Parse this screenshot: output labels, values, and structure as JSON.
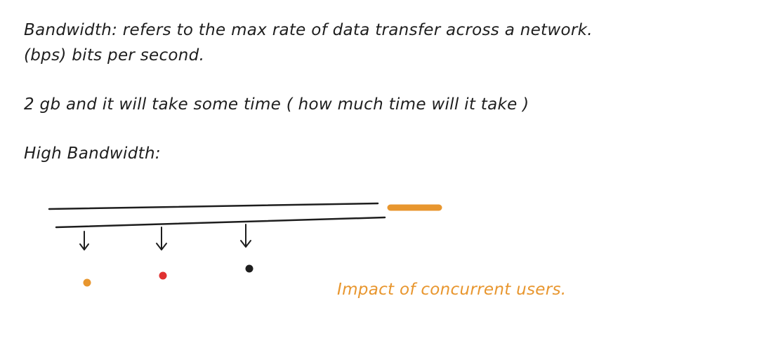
{
  "text": {
    "bandwidth_definition": "Bandwidth: refers to the max rate of data transfer across a network.",
    "bps_note": "(bps) bits per second.",
    "example_2gb": "2 gb and it will take some time ( how much time will it take )",
    "high_bandwidth_heading": "High Bandwidth:",
    "impact_note": "Impact of concurrent users."
  },
  "colors": {
    "ink": "#1e1e1e",
    "orange": "#e8962e",
    "red": "#e03131",
    "black": "#1e1e1e"
  },
  "diagram": {
    "pipe": "two parallel lines",
    "arrows": 3,
    "users": [
      {
        "color": "#e8962e"
      },
      {
        "color": "#e03131"
      },
      {
        "color": "#1e1e1e"
      }
    ]
  }
}
